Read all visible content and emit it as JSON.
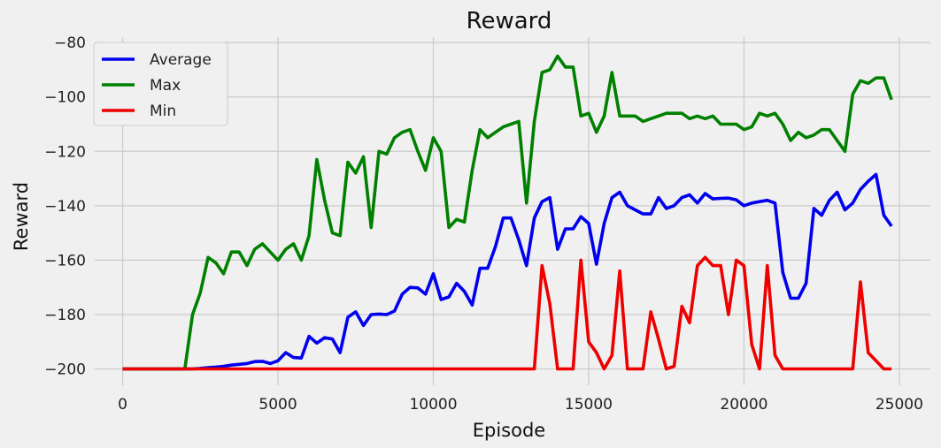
{
  "chart_data": {
    "type": "line",
    "title": "Reward",
    "xlabel": "Episode",
    "ylabel": "Reward",
    "xlim": [
      -900,
      26000
    ],
    "ylim": [
      -206,
      -78
    ],
    "x_ticks": [
      0,
      5000,
      10000,
      15000,
      20000,
      25000
    ],
    "x_tick_labels": [
      "0",
      "5000",
      "10000",
      "15000",
      "20000",
      "25000"
    ],
    "y_ticks": [
      -200,
      -180,
      -160,
      -140,
      -120,
      -100,
      -80
    ],
    "y_tick_labels": [
      "−200",
      "−180",
      "−160",
      "−140",
      "−120",
      "−100",
      "−80"
    ],
    "grid": true,
    "legend_position": "top-left",
    "x": [
      0,
      250,
      500,
      750,
      1000,
      1250,
      1500,
      1750,
      2000,
      2250,
      2500,
      2750,
      3000,
      3250,
      3500,
      3750,
      4000,
      4250,
      4500,
      4750,
      5000,
      5250,
      5500,
      5750,
      6000,
      6250,
      6500,
      6750,
      7000,
      7250,
      7500,
      7750,
      8000,
      8250,
      8500,
      8750,
      9000,
      9250,
      9500,
      9750,
      10000,
      10250,
      10500,
      10750,
      11000,
      11250,
      11500,
      11750,
      12000,
      12250,
      12500,
      12750,
      13000,
      13250,
      13500,
      13750,
      14000,
      14250,
      14500,
      14750,
      15000,
      15250,
      15500,
      15750,
      16000,
      16250,
      16500,
      16750,
      17000,
      17250,
      17500,
      17750,
      18000,
      18250,
      18500,
      18750,
      19000,
      19250,
      19500,
      19750,
      20000,
      20250,
      20500,
      20750,
      21000,
      21250,
      21500,
      21750,
      22000,
      22250,
      22500,
      22750,
      23000,
      23250,
      23500,
      23750,
      24000,
      24250,
      24500,
      24750
    ],
    "series": [
      {
        "name": "Average",
        "color": "#0000ee",
        "values": [
          -200,
          -200,
          -200,
          -200,
          -200,
          -200,
          -200,
          -200,
          -200,
          -200,
          -199.8,
          -199.5,
          -199.3,
          -199,
          -198.6,
          -198.3,
          -198,
          -197.3,
          -197.2,
          -198,
          -197,
          -194,
          -195.8,
          -196,
          -188,
          -190.5,
          -188.5,
          -189,
          -194,
          -181,
          -179,
          -184,
          -180,
          -179.8,
          -180,
          -178.7,
          -172.5,
          -170,
          -170.2,
          -172.5,
          -165,
          -174.5,
          -173.5,
          -168.5,
          -171.5,
          -176.5,
          -163,
          -163,
          -155,
          -144.5,
          -144.5,
          -152.5,
          -162,
          -144.5,
          -138.5,
          -137,
          -156,
          -148.5,
          -148.5,
          -144,
          -146.5,
          -161.5,
          -146.5,
          -137,
          -135,
          -140,
          -141.5,
          -143,
          -143,
          -137,
          -141,
          -140,
          -137,
          -136,
          -139,
          -135.5,
          -137.5,
          -137.3,
          -137.2,
          -137.8,
          -140,
          -139,
          -138.5,
          -138,
          -139,
          -164.5,
          -174,
          -174,
          -168.5,
          -141,
          -143.5,
          -138,
          -135,
          -141.5,
          -139,
          -134,
          -131,
          -128.5,
          -143.5,
          -147.5
        ]
      },
      {
        "name": "Max",
        "color": "#008000",
        "values": [
          -200,
          -200,
          -200,
          -200,
          -200,
          -200,
          -200,
          -200,
          -200,
          -180,
          -172,
          -159,
          -161,
          -165,
          -157,
          -157,
          -162,
          -156,
          -154,
          -157,
          -160,
          -156,
          -154,
          -160,
          -151,
          -123,
          -138,
          -150,
          -151,
          -124,
          -128,
          -122,
          -148,
          -120,
          -121,
          -115,
          -113,
          -112,
          -120,
          -127,
          -115,
          -120,
          -148,
          -145,
          -146,
          -127,
          -112,
          -115,
          -113,
          -111,
          -110,
          -109,
          -139,
          -109,
          -91,
          -90,
          -85,
          -89,
          -89,
          -107,
          -106,
          -113,
          -107,
          -91,
          -107,
          -107,
          -107,
          -109,
          -108,
          -107,
          -106,
          -106,
          -106,
          -108,
          -107,
          -108,
          -107,
          -110,
          -110,
          -110,
          -112,
          -111,
          -106,
          -107,
          -106,
          -110,
          -116,
          -113,
          -115,
          -114,
          -112,
          -112,
          -116,
          -120,
          -99,
          -94,
          -95,
          -93,
          -93,
          -101
        ]
      },
      {
        "name": "Min",
        "color": "#ee0000",
        "values": [
          -200,
          -200,
          -200,
          -200,
          -200,
          -200,
          -200,
          -200,
          -200,
          -200,
          -200,
          -200,
          -200,
          -200,
          -200,
          -200,
          -200,
          -200,
          -200,
          -200,
          -200,
          -200,
          -200,
          -200,
          -200,
          -200,
          -200,
          -200,
          -200,
          -200,
          -200,
          -200,
          -200,
          -200,
          -200,
          -200,
          -200,
          -200,
          -200,
          -200,
          -200,
          -200,
          -200,
          -200,
          -200,
          -200,
          -200,
          -200,
          -200,
          -200,
          -200,
          -200,
          -200,
          -200,
          -162,
          -176,
          -200,
          -200,
          -200,
          -160,
          -190,
          -194,
          -200,
          -195,
          -164,
          -200,
          -200,
          -200,
          -179,
          -189,
          -200,
          -199,
          -177,
          -183,
          -162,
          -159,
          -162,
          -162,
          -180,
          -160,
          -162,
          -191,
          -200,
          -162,
          -195,
          -200,
          -200,
          -200,
          -200,
          -200,
          -200,
          -200,
          -200,
          -200,
          -200,
          -168,
          -194,
          -197,
          -200,
          -200
        ]
      }
    ]
  }
}
